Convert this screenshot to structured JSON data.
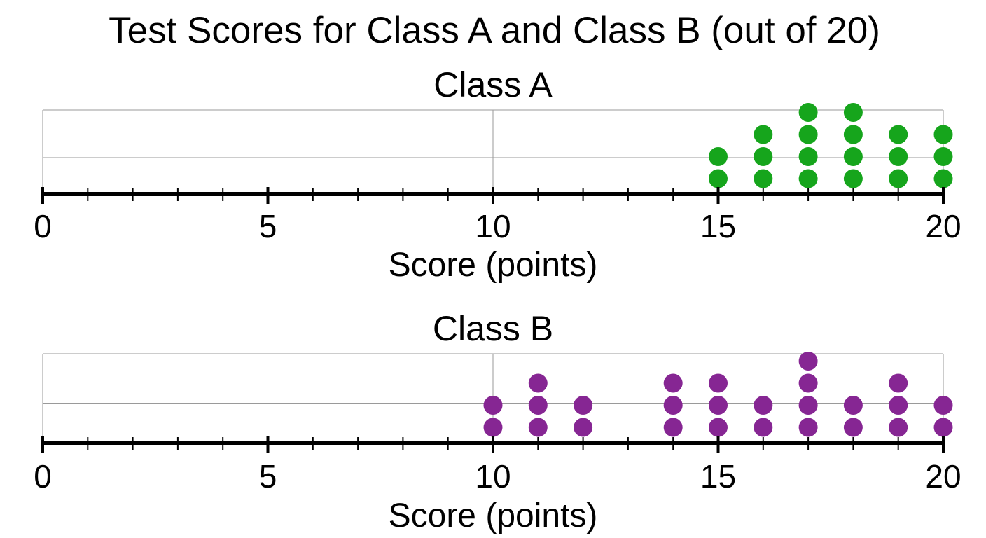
{
  "title": "Test Scores for Class A and Class B (out of 20)",
  "chart_data": [
    {
      "type": "dot",
      "title": "Class A",
      "xlabel": "Score (points)",
      "xlim": [
        0,
        20
      ],
      "major_ticks": [
        0,
        5,
        10,
        15,
        20
      ],
      "minor_tick_step": 1,
      "grid": true,
      "color": "#16a51c",
      "points": [
        {
          "x": 15,
          "count": 2
        },
        {
          "x": 16,
          "count": 3
        },
        {
          "x": 17,
          "count": 4
        },
        {
          "x": 18,
          "count": 4
        },
        {
          "x": 19,
          "count": 3
        },
        {
          "x": 20,
          "count": 3
        }
      ]
    },
    {
      "type": "dot",
      "title": "Class B",
      "xlabel": "Score (points)",
      "xlim": [
        0,
        20
      ],
      "major_ticks": [
        0,
        5,
        10,
        15,
        20
      ],
      "minor_tick_step": 1,
      "grid": true,
      "color": "#862693",
      "points": [
        {
          "x": 10,
          "count": 2
        },
        {
          "x": 11,
          "count": 3
        },
        {
          "x": 12,
          "count": 2
        },
        {
          "x": 14,
          "count": 3
        },
        {
          "x": 15,
          "count": 3
        },
        {
          "x": 16,
          "count": 2
        },
        {
          "x": 17,
          "count": 4
        },
        {
          "x": 18,
          "count": 2
        },
        {
          "x": 19,
          "count": 3
        },
        {
          "x": 20,
          "count": 2
        }
      ]
    }
  ]
}
